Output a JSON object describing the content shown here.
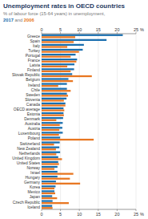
{
  "chart_data": {
    "type": "bar",
    "orientation": "horizontal",
    "title": "Unemployment rates in OECD countries",
    "subtitle": "% of labour force (15-64 years) in unemployment, 2017 and 2006",
    "x_label": "%",
    "categories": [
      "Greece",
      "Spain",
      "Italy",
      "Turkey",
      "Portugal",
      "France",
      "Latvia",
      "Finland",
      "Slovak Republic",
      "Belgium",
      "Ireland",
      "Chile",
      "Sweden",
      "Slovenia",
      "Canada",
      "OECD average",
      "Estonia",
      "Denmark",
      "Australia",
      "Austria",
      "Luxembourg",
      "Poland",
      "Switzerland",
      "New Zealand",
      "Netherlands",
      "United Kingdom",
      "United States",
      "Norway",
      "Israel",
      "Hungary",
      "Germany",
      "Korea",
      "Mexico",
      "Japan",
      "Czech Republic",
      "Iceland"
    ],
    "series": [
      {
        "name": "2017",
        "color": "#1a6faf",
        "values": [
          21.5,
          17.2,
          11.2,
          10.9,
          9.0,
          9.4,
          8.7,
          8.6,
          8.1,
          7.1,
          6.7,
          6.7,
          6.7,
          6.6,
          6.3,
          5.8,
          5.8,
          5.7,
          5.6,
          5.5,
          5.6,
          4.9,
          4.8,
          4.7,
          4.9,
          4.4,
          4.4,
          4.2,
          4.2,
          4.2,
          3.8,
          3.7,
          3.4,
          2.8,
          2.9,
          2.8
        ]
      },
      {
        "name": "2006",
        "color": "#e87722",
        "values": [
          8.9,
          8.5,
          6.8,
          9.9,
          7.7,
          9.2,
          6.8,
          7.7,
          13.3,
          8.3,
          4.4,
          7.7,
          7.0,
          5.9,
          6.3,
          6.0,
          5.9,
          3.9,
          4.8,
          4.7,
          4.6,
          13.8,
          3.3,
          3.8,
          3.9,
          5.4,
          4.6,
          3.4,
          8.4,
          7.5,
          10.2,
          3.4,
          3.6,
          4.1,
          7.2,
          2.9
        ]
      }
    ],
    "xlim": [
      0,
      25
    ],
    "xticks": [
      0,
      5,
      10,
      15,
      20,
      25
    ],
    "grid": true
  }
}
